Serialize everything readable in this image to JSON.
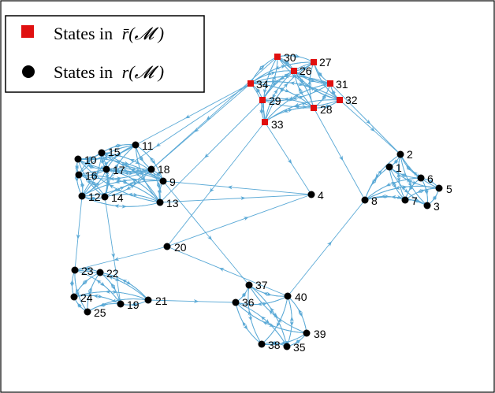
{
  "colors": {
    "edge": "#5aa9d6",
    "unreachable_node": "#e01010",
    "reachable_node": "#000000",
    "frame": "#000000"
  },
  "legend": {
    "items": [
      {
        "shape": "square",
        "color": "#e01010",
        "text": "States in",
        "math": "r̄(𝓜 )"
      },
      {
        "shape": "circle",
        "color": "#000000",
        "text": "States in",
        "math": "r(𝓜 )"
      }
    ]
  },
  "nodes": [
    {
      "id": "1",
      "type": "circle"
    },
    {
      "id": "2",
      "type": "circle"
    },
    {
      "id": "3",
      "type": "circle"
    },
    {
      "id": "4",
      "type": "circle"
    },
    {
      "id": "5",
      "type": "circle"
    },
    {
      "id": "6",
      "type": "circle"
    },
    {
      "id": "7",
      "type": "circle"
    },
    {
      "id": "8",
      "type": "circle"
    },
    {
      "id": "9",
      "type": "circle"
    },
    {
      "id": "10",
      "type": "circle"
    },
    {
      "id": "11",
      "type": "circle"
    },
    {
      "id": "12",
      "type": "circle"
    },
    {
      "id": "13",
      "type": "circle"
    },
    {
      "id": "14",
      "type": "circle"
    },
    {
      "id": "15",
      "type": "circle"
    },
    {
      "id": "16",
      "type": "circle"
    },
    {
      "id": "17",
      "type": "circle"
    },
    {
      "id": "18",
      "type": "circle"
    },
    {
      "id": "19",
      "type": "circle"
    },
    {
      "id": "20",
      "type": "circle"
    },
    {
      "id": "21",
      "type": "circle"
    },
    {
      "id": "22",
      "type": "circle"
    },
    {
      "id": "23",
      "type": "circle"
    },
    {
      "id": "24",
      "type": "circle"
    },
    {
      "id": "25",
      "type": "circle"
    },
    {
      "id": "26",
      "type": "square"
    },
    {
      "id": "27",
      "type": "square"
    },
    {
      "id": "28",
      "type": "square"
    },
    {
      "id": "29",
      "type": "square"
    },
    {
      "id": "30",
      "type": "square"
    },
    {
      "id": "31",
      "type": "square"
    },
    {
      "id": "32",
      "type": "square"
    },
    {
      "id": "33",
      "type": "square"
    },
    {
      "id": "34",
      "type": "square"
    },
    {
      "id": "35",
      "type": "circle"
    },
    {
      "id": "36",
      "type": "circle"
    },
    {
      "id": "37",
      "type": "circle"
    },
    {
      "id": "38",
      "type": "circle"
    },
    {
      "id": "39",
      "type": "circle"
    },
    {
      "id": "40",
      "type": "circle"
    }
  ],
  "clusters": [
    [
      "1",
      "2",
      "3",
      "5",
      "6",
      "7",
      "8"
    ],
    [
      "9",
      "10",
      "11",
      "12",
      "13",
      "14",
      "15",
      "16",
      "17",
      "18"
    ],
    [
      "19",
      "21",
      "22",
      "23",
      "24",
      "25"
    ],
    [
      "26",
      "27",
      "28",
      "29",
      "30",
      "31",
      "32",
      "33",
      "34"
    ],
    [
      "35",
      "36",
      "37",
      "38",
      "39",
      "40"
    ]
  ],
  "inter_edges": [
    [
      "34",
      "11"
    ],
    [
      "34",
      "18"
    ],
    [
      "33",
      "20"
    ],
    [
      "29",
      "13"
    ],
    [
      "28",
      "8"
    ],
    [
      "32",
      "2"
    ],
    [
      "31",
      "2"
    ],
    [
      "4",
      "9"
    ],
    [
      "13",
      "4"
    ],
    [
      "20",
      "4"
    ],
    [
      "9",
      "37"
    ],
    [
      "21",
      "36"
    ],
    [
      "40",
      "8"
    ],
    [
      "40",
      "20"
    ],
    [
      "20",
      "23"
    ],
    [
      "12",
      "23"
    ],
    [
      "14",
      "19"
    ],
    [
      "33",
      "4"
    ],
    [
      "30",
      "18"
    ],
    [
      "34",
      "12"
    ]
  ]
}
